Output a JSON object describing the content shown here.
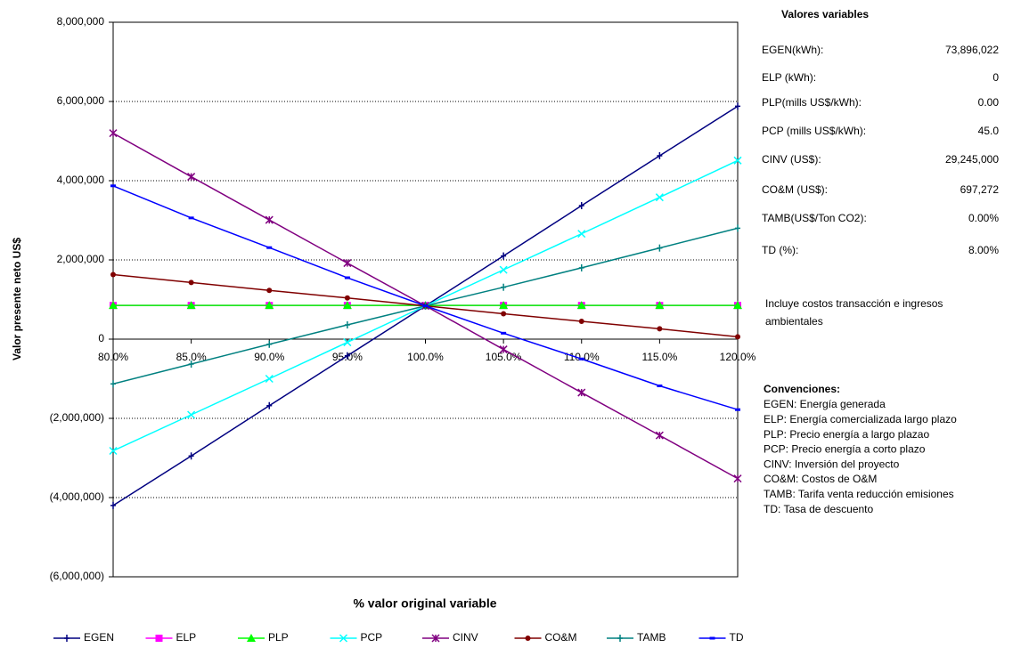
{
  "chart_data": {
    "type": "line",
    "x_label": "% valor original variable",
    "y_label": "Valor presente neto  US$",
    "categories": [
      "80.0%",
      "85.0%",
      "90.0%",
      "95.0%",
      "100.0%",
      "105.0%",
      "110.0%",
      "115.0%",
      "120.0%"
    ],
    "series": [
      {
        "name": "EGEN",
        "color": "#000080",
        "marker": "plus",
        "values": [
          -4200000,
          -2950000,
          -1680000,
          -420000,
          840000,
          2100000,
          3370000,
          4630000,
          5880000
        ]
      },
      {
        "name": "ELP",
        "color": "#ff00ff",
        "marker": "square",
        "values": [
          850000,
          850000,
          850000,
          850000,
          850000,
          850000,
          850000,
          850000,
          850000
        ]
      },
      {
        "name": "PLP",
        "color": "#00ff00",
        "marker": "triangle",
        "values": [
          850000,
          850000,
          850000,
          850000,
          850000,
          850000,
          850000,
          850000,
          850000
        ]
      },
      {
        "name": "PCP",
        "color": "#00ffff",
        "marker": "x",
        "values": [
          -2820000,
          -1910000,
          -1000000,
          -80000,
          840000,
          1750000,
          2660000,
          3580000,
          4510000
        ]
      },
      {
        "name": "CINV",
        "color": "#800080",
        "marker": "star",
        "values": [
          5200000,
          4100000,
          3010000,
          1920000,
          840000,
          -260000,
          -1350000,
          -2430000,
          -3520000
        ]
      },
      {
        "name": "CO&M",
        "color": "#800000",
        "marker": "circle",
        "values": [
          1630000,
          1430000,
          1230000,
          1040000,
          840000,
          640000,
          450000,
          260000,
          60000
        ]
      },
      {
        "name": "TAMB",
        "color": "#008080",
        "marker": "plus",
        "values": [
          -1130000,
          -630000,
          -130000,
          360000,
          840000,
          1310000,
          1800000,
          2300000,
          2800000
        ]
      },
      {
        "name": "TD",
        "color": "#0000ff",
        "marker": "dash",
        "values": [
          3870000,
          3060000,
          2310000,
          1550000,
          840000,
          150000,
          -500000,
          -1180000,
          -1780000
        ]
      }
    ],
    "ylim": [
      -6000000,
      8000000
    ],
    "yticks": [
      {
        "value": -6000000,
        "label": "(6,000,000)"
      },
      {
        "value": -4000000,
        "label": "(4,000,000)"
      },
      {
        "value": -2000000,
        "label": "(2,000,000)"
      },
      0,
      {
        "value": 2000000,
        "label": "2,000,000"
      },
      {
        "value": 4000000,
        "label": "4,000,000"
      },
      {
        "value": 6000000,
        "label": "6,000,000"
      },
      {
        "value": 8000000,
        "label": "8,000,000"
      }
    ],
    "grid": true
  },
  "side_panel": {
    "title": "Valores variables",
    "rows": [
      [
        "EGEN(kWh):",
        "73,896,022"
      ],
      [
        "ELP (kWh):",
        "0"
      ],
      [
        "PLP(mills US$/kWh):",
        "0.00"
      ],
      [
        "PCP (mills US$/kWh):",
        "45.0"
      ],
      [
        "CINV (US$):",
        "29,245,000"
      ],
      [
        "CO&M (US$):",
        "697,272"
      ],
      [
        "TAMB(US$/Ton CO2):",
        "0.00%"
      ],
      [
        "TD (%):",
        "8.00%"
      ]
    ],
    "note": [
      "Incluye costos transacción e ingresos",
      "ambientales"
    ],
    "conventions_title": "Convenciones:",
    "conventions": [
      "EGEN: Energía generada",
      "ELP: Energía comercializada largo plazo",
      "PLP: Precio energía a largo plazao",
      "PCP: Precio energía a corto plazo",
      "CINV:  Inversión del proyecto",
      "CO&M: Costos de O&M",
      "TAMB: Tarifa venta reducción emisiones",
      "TD: Tasa de descuento"
    ]
  }
}
